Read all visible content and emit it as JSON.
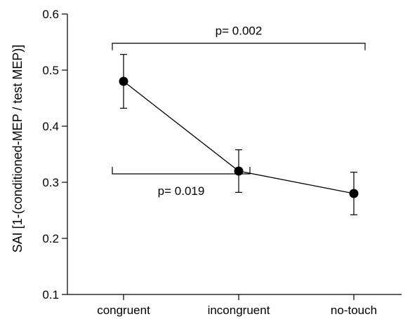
{
  "chart_data": {
    "type": "line",
    "title": "",
    "xlabel": "",
    "ylabel": "SAI [1-(conditioned-MEP / test MEP)]",
    "categories": [
      "congruent",
      "incongruent",
      "no-touch"
    ],
    "series": [
      {
        "values": [
          0.48,
          0.32,
          0.28
        ],
        "error_upper": [
          0.528,
          0.358,
          0.318
        ],
        "error_lower": [
          0.432,
          0.282,
          0.242
        ]
      }
    ],
    "ylim": [
      0.1,
      0.6
    ],
    "yticks": [
      "0.1",
      "0.2",
      "0.3",
      "0.4",
      "0.5",
      "0.6"
    ],
    "grid": false,
    "annotations": [
      {
        "text": "p= 0.002",
        "from": "congruent",
        "to": "no-touch",
        "bracket_y": 0.548,
        "orientation": "down"
      },
      {
        "text": "p= 0.019",
        "from": "congruent",
        "to": "incongruent",
        "bracket_y": 0.315,
        "orientation": "up"
      }
    ],
    "colors": {
      "line": "#000000",
      "marker": "#000000"
    }
  }
}
